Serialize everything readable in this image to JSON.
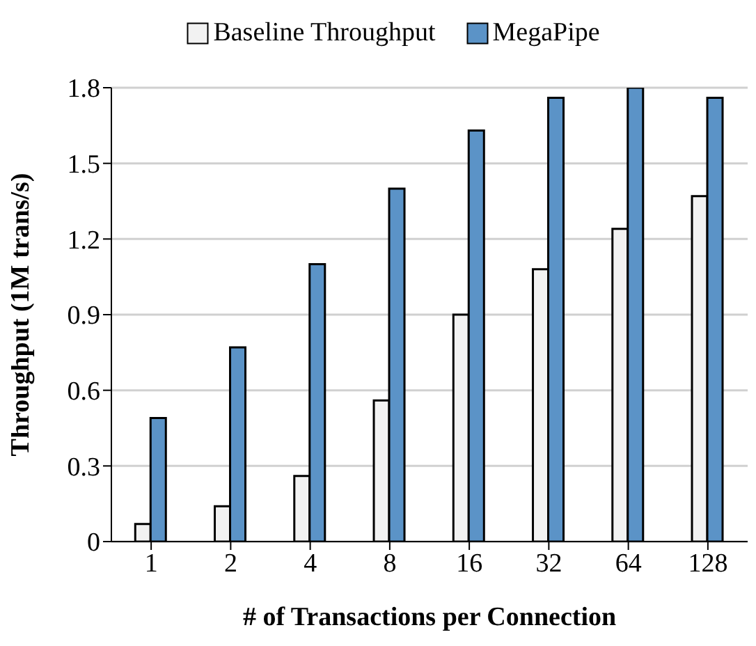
{
  "chart_data": {
    "type": "bar",
    "xlabel": "# of Transactions per Connection",
    "ylabel": "Throughput (1M trans/s)",
    "categories": [
      "1",
      "2",
      "4",
      "8",
      "16",
      "32",
      "64",
      "128"
    ],
    "series": [
      {
        "name": "Baseline Throughput",
        "color": "#f2f2f2",
        "values": [
          0.07,
          0.14,
          0.26,
          0.56,
          0.9,
          1.08,
          1.24,
          1.37
        ]
      },
      {
        "name": "MegaPipe",
        "color": "#5b93c7",
        "values": [
          0.49,
          0.77,
          1.1,
          1.4,
          1.63,
          1.76,
          1.8,
          1.76
        ]
      }
    ],
    "ylim": [
      0,
      1.8
    ],
    "yticks": [
      0,
      0.3,
      0.6,
      0.9,
      1.2,
      1.5,
      1.8
    ],
    "grid": "y",
    "legend": "top"
  }
}
